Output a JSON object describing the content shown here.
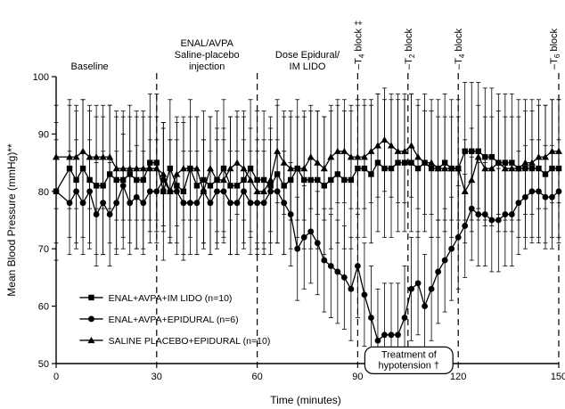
{
  "chart_data": {
    "type": "line",
    "title": "",
    "xlabel": "Time (minutes)",
    "ylabel": "Mean Blood Pressure (mmHg)**",
    "xlim": [
      0,
      150
    ],
    "ylim": [
      50,
      100
    ],
    "x_ticks": [
      0,
      30,
      60,
      90,
      120,
      150
    ],
    "y_ticks": [
      50,
      60,
      70,
      80,
      90,
      100
    ],
    "grid": false,
    "legend_position": "bottom-left",
    "phase_labels": [
      {
        "x": 10,
        "lines": [
          "Baseline"
        ]
      },
      {
        "x": 45,
        "lines": [
          "ENAL/AVPA",
          "Saline-placebo",
          "injection"
        ]
      },
      {
        "x": 75,
        "lines": [
          "Dose Epidural/",
          "IM LIDO"
        ]
      }
    ],
    "events": [
      {
        "x": 30,
        "label": ""
      },
      {
        "x": 60,
        "label": ""
      },
      {
        "x": 90,
        "label": "–T4 block ‡"
      },
      {
        "x": 105,
        "label": "–T2 block"
      },
      {
        "x": 120,
        "label": "–T4 block"
      },
      {
        "x": 150,
        "label": "–T6 block"
      }
    ],
    "annotation_box": {
      "x_start": 90,
      "x_end": 120,
      "lines": [
        "Treatment of",
        "hypotension †"
      ]
    },
    "series": [
      {
        "name": "ENAL+AVPA+IM LIDO (n=10)",
        "marker": "square",
        "x": [
          0,
          4,
          6,
          8,
          10,
          12,
          14,
          16,
          18,
          20,
          22,
          24,
          26,
          28,
          30,
          32,
          34,
          36,
          38,
          40,
          42,
          44,
          46,
          48,
          50,
          52,
          54,
          56,
          58,
          60,
          62,
          64,
          66,
          68,
          70,
          72,
          74,
          76,
          78,
          80,
          82,
          84,
          86,
          88,
          90,
          92,
          94,
          96,
          98,
          100,
          102,
          104,
          106,
          108,
          110,
          112,
          114,
          116,
          118,
          120,
          122,
          124,
          126,
          128,
          130,
          132,
          134,
          136,
          138,
          140,
          142,
          144,
          146,
          148,
          150
        ],
        "y": [
          80,
          84,
          82,
          84,
          82,
          81,
          81,
          83,
          82,
          82,
          83,
          82,
          82,
          85,
          85,
          80,
          84,
          81,
          80,
          84,
          81,
          82,
          81,
          82,
          84,
          81,
          81,
          82,
          84,
          82,
          82,
          81,
          83,
          81,
          82,
          84,
          82,
          82,
          82,
          81,
          82,
          83,
          82,
          82,
          84,
          84,
          83,
          85,
          84,
          84,
          85,
          85,
          85,
          84,
          85,
          84,
          84,
          85,
          84,
          84,
          87,
          87,
          87,
          86,
          86,
          85,
          85,
          85,
          84,
          84,
          84,
          84,
          83,
          84,
          84
        ],
        "error": 12
      },
      {
        "name": "ENAL+AVPA+EPIDURAL (n=6)",
        "marker": "circle",
        "x": [
          0,
          4,
          6,
          8,
          10,
          12,
          14,
          16,
          18,
          20,
          22,
          24,
          26,
          28,
          30,
          32,
          34,
          36,
          38,
          40,
          42,
          44,
          46,
          48,
          50,
          52,
          54,
          56,
          58,
          60,
          62,
          64,
          66,
          68,
          70,
          72,
          74,
          76,
          78,
          80,
          82,
          84,
          86,
          88,
          90,
          92,
          94,
          96,
          98,
          100,
          102,
          104,
          106,
          108,
          110,
          112,
          114,
          116,
          118,
          120,
          122,
          124,
          126,
          128,
          130,
          132,
          134,
          136,
          138,
          140,
          142,
          144,
          146,
          148,
          150
        ],
        "y": [
          80,
          78,
          80,
          78,
          80,
          76,
          78,
          76,
          78,
          81,
          78,
          79,
          78,
          80,
          80,
          82,
          80,
          80,
          78,
          78,
          78,
          80,
          78,
          80,
          80,
          78,
          78,
          80,
          78,
          78,
          78,
          80,
          80,
          78,
          76,
          70,
          72,
          73,
          71,
          68,
          67,
          66,
          65,
          63,
          67,
          62,
          58,
          54,
          55,
          55,
          55,
          58,
          63,
          64,
          60,
          63,
          66,
          68,
          70,
          72,
          74,
          77,
          76,
          76,
          75,
          75,
          76,
          76,
          78,
          79,
          80,
          80,
          79,
          79,
          80
        ],
        "error": 9
      },
      {
        "name": "SALINE PLACEBO+EPIDURAL (n=10)",
        "marker": "triangle",
        "x": [
          0,
          4,
          6,
          8,
          10,
          12,
          14,
          16,
          18,
          20,
          22,
          24,
          26,
          28,
          30,
          32,
          34,
          36,
          38,
          40,
          42,
          44,
          46,
          48,
          50,
          52,
          54,
          56,
          58,
          60,
          62,
          64,
          66,
          68,
          70,
          72,
          74,
          76,
          78,
          80,
          82,
          84,
          86,
          88,
          90,
          92,
          94,
          96,
          98,
          100,
          102,
          104,
          106,
          108,
          110,
          112,
          114,
          116,
          118,
          120,
          122,
          124,
          126,
          128,
          130,
          132,
          134,
          136,
          138,
          140,
          142,
          144,
          146,
          148,
          150
        ],
        "y": [
          86,
          86,
          86,
          87,
          86,
          86,
          86,
          86,
          84,
          84,
          84,
          84,
          84,
          84,
          84,
          83,
          80,
          83,
          84,
          84,
          84,
          80,
          84,
          82,
          82,
          84,
          85,
          84,
          82,
          80,
          80,
          82,
          87,
          85,
          84,
          84,
          84,
          86,
          85,
          84,
          86,
          87,
          87,
          86,
          86,
          86,
          87,
          88,
          89,
          88,
          87,
          87,
          88,
          86,
          85,
          85,
          84,
          84,
          84,
          84,
          80,
          82,
          86,
          84,
          84,
          85,
          84,
          84,
          84,
          85,
          85,
          86,
          86,
          87,
          87
        ],
        "error": 9
      }
    ]
  }
}
